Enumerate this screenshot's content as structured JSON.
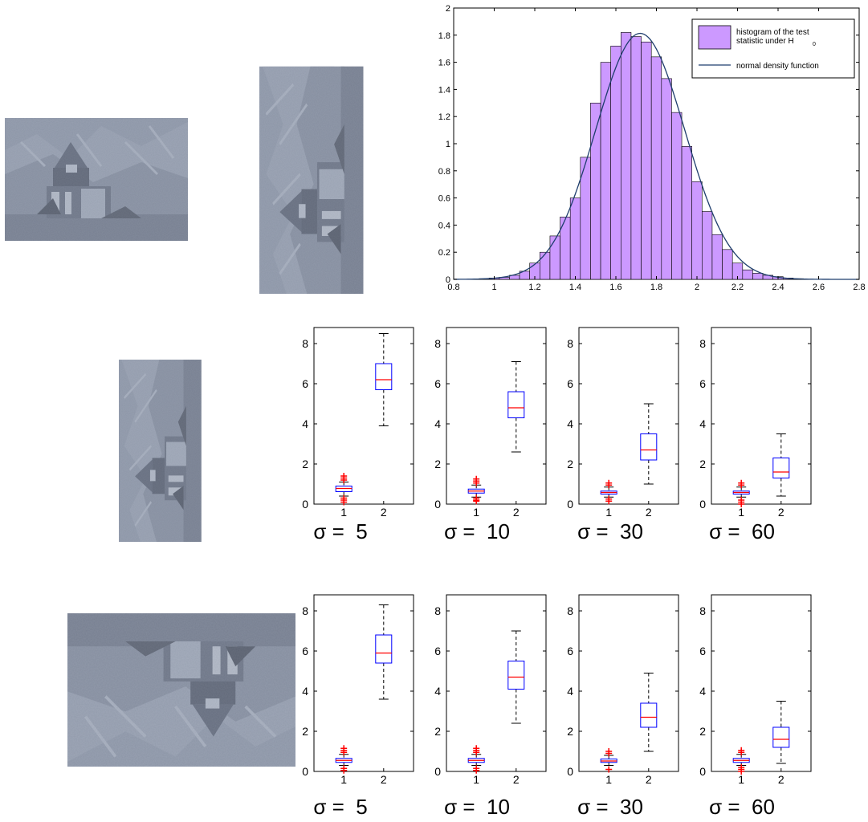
{
  "images": [
    {
      "id": "photo-original",
      "rotation": 0,
      "description": "church-on-mountainside-photo"
    },
    {
      "id": "photo-rotated-1",
      "rotation": 90
    },
    {
      "id": "photo-rotated-2",
      "rotation": 90
    },
    {
      "id": "photo-rotated-3",
      "rotation": 180
    }
  ],
  "chart_data": [
    {
      "type": "bar",
      "subtype": "histogram-with-density-line",
      "title": "",
      "xlabel": "",
      "ylabel": "",
      "xlim": [
        0.8,
        2.8
      ],
      "ylim": [
        0,
        2
      ],
      "x_ticks": [
        "0.8",
        "1",
        "1.2",
        "1.4",
        "1.6",
        "1.8",
        "2",
        "2.2",
        "2.4",
        "2.6",
        "2.8"
      ],
      "y_ticks": [
        "0",
        "0.2",
        "0.4",
        "0.6",
        "0.8",
        "1",
        "1.2",
        "1.4",
        "1.6",
        "1.8",
        "2"
      ],
      "legend": {
        "placement": "top-right",
        "entries": [
          {
            "line1": "histogram of the test",
            "line2": "statistic under H",
            "subscript": "0",
            "color": "#cc99ff"
          },
          {
            "line1": "normal density function",
            "color": "#1f3e6e"
          }
        ]
      },
      "bin_width": 0.05,
      "bins_start": 0.925,
      "values": [
        0.005,
        0.01,
        0.015,
        0.03,
        0.06,
        0.12,
        0.2,
        0.32,
        0.46,
        0.6,
        0.9,
        1.3,
        1.6,
        1.72,
        1.82,
        1.79,
        1.75,
        1.64,
        1.48,
        1.23,
        0.98,
        0.72,
        0.5,
        0.33,
        0.22,
        0.12,
        0.07,
        0.045,
        0.03,
        0.02,
        0.01,
        0.005
      ],
      "density": {
        "mean": 1.72,
        "sd": 0.22
      }
    },
    {
      "type": "box",
      "row": 1,
      "label": "σ =  5",
      "ylim": [
        0,
        8.8
      ],
      "y_ticks": [
        "0",
        "2",
        "4",
        "6",
        "8"
      ],
      "categories": [
        "1",
        "2"
      ],
      "boxes": [
        {
          "whislo": 0.4,
          "q1": 0.62,
          "med": 0.78,
          "q3": 0.9,
          "whishi": 1.1,
          "outliers": [
            0.1,
            0.2,
            0.3,
            1.2,
            1.3,
            1.4
          ]
        },
        {
          "whislo": 3.9,
          "q1": 5.7,
          "med": 6.2,
          "q3": 7.0,
          "whishi": 8.5,
          "outliers": []
        }
      ]
    },
    {
      "type": "box",
      "row": 1,
      "label": "σ =  10",
      "ylim": [
        0,
        8.8
      ],
      "y_ticks": [
        "0",
        "2",
        "4",
        "6",
        "8"
      ],
      "categories": [
        "1",
        "2"
      ],
      "boxes": [
        {
          "whislo": 0.35,
          "q1": 0.55,
          "med": 0.65,
          "q3": 0.75,
          "whishi": 0.95,
          "outliers": [
            0.15,
            0.2,
            0.3,
            1.05,
            1.15,
            1.25
          ]
        },
        {
          "whislo": 2.6,
          "q1": 4.3,
          "med": 4.8,
          "q3": 5.6,
          "whishi": 7.1,
          "outliers": []
        }
      ]
    },
    {
      "type": "box",
      "row": 1,
      "label": "σ =  30",
      "ylim": [
        0,
        8.8
      ],
      "y_ticks": [
        "0",
        "2",
        "4",
        "6",
        "8"
      ],
      "categories": [
        "1",
        "2"
      ],
      "boxes": [
        {
          "whislo": 0.35,
          "q1": 0.5,
          "med": 0.58,
          "q3": 0.65,
          "whishi": 0.85,
          "outliers": [
            0.15,
            0.25,
            0.95,
            1.05
          ]
        },
        {
          "whislo": 1.0,
          "q1": 2.2,
          "med": 2.7,
          "q3": 3.5,
          "whishi": 5.0,
          "outliers": []
        }
      ]
    },
    {
      "type": "box",
      "row": 1,
      "label": "σ =  60",
      "ylim": [
        0,
        8.8
      ],
      "y_ticks": [
        "0",
        "2",
        "4",
        "6",
        "8"
      ],
      "categories": [
        "1",
        "2"
      ],
      "boxes": [
        {
          "whislo": 0.35,
          "q1": 0.5,
          "med": 0.58,
          "q3": 0.65,
          "whishi": 0.85,
          "outliers": [
            0.0,
            0.1,
            0.2,
            0.95,
            1.05
          ]
        },
        {
          "whislo": 0.4,
          "q1": 1.3,
          "med": 1.6,
          "q3": 2.3,
          "whishi": 3.5,
          "outliers": []
        }
      ]
    },
    {
      "type": "box",
      "row": 2,
      "label": "σ =  5",
      "ylim": [
        0,
        8.8
      ],
      "y_ticks": [
        "0",
        "2",
        "4",
        "6",
        "8"
      ],
      "categories": [
        "1",
        "2"
      ],
      "boxes": [
        {
          "whislo": 0.3,
          "q1": 0.45,
          "med": 0.55,
          "q3": 0.65,
          "whishi": 0.85,
          "outliers": [
            0.05,
            0.15,
            0.95,
            1.05,
            1.15
          ]
        },
        {
          "whislo": 3.6,
          "q1": 5.4,
          "med": 5.9,
          "q3": 6.8,
          "whishi": 8.3,
          "outliers": []
        }
      ]
    },
    {
      "type": "box",
      "row": 2,
      "label": "σ =  10",
      "ylim": [
        0,
        8.8
      ],
      "y_ticks": [
        "0",
        "2",
        "4",
        "6",
        "8"
      ],
      "categories": [
        "1",
        "2"
      ],
      "boxes": [
        {
          "whislo": 0.3,
          "q1": 0.45,
          "med": 0.55,
          "q3": 0.65,
          "whishi": 0.85,
          "outliers": [
            0.05,
            0.15,
            0.95,
            1.05,
            1.15
          ]
        },
        {
          "whislo": 2.4,
          "q1": 4.1,
          "med": 4.7,
          "q3": 5.5,
          "whishi": 7.0,
          "outliers": []
        }
      ]
    },
    {
      "type": "box",
      "row": 2,
      "label": "σ =  30",
      "ylim": [
        0,
        8.8
      ],
      "y_ticks": [
        "0",
        "2",
        "4",
        "6",
        "8"
      ],
      "categories": [
        "1",
        "2"
      ],
      "boxes": [
        {
          "whislo": 0.3,
          "q1": 0.45,
          "med": 0.52,
          "q3": 0.62,
          "whishi": 0.8,
          "outliers": [
            0.1,
            0.9,
            1.0
          ]
        },
        {
          "whislo": 1.0,
          "q1": 2.2,
          "med": 2.7,
          "q3": 3.4,
          "whishi": 4.9,
          "outliers": []
        }
      ]
    },
    {
      "type": "box",
      "row": 2,
      "label": "σ =  60",
      "ylim": [
        0,
        8.8
      ],
      "y_ticks": [
        "0",
        "2",
        "4",
        "6",
        "8"
      ],
      "categories": [
        "1",
        "2"
      ],
      "boxes": [
        {
          "whislo": 0.3,
          "q1": 0.45,
          "med": 0.55,
          "q3": 0.65,
          "whishi": 0.85,
          "outliers": [
            0.0,
            0.1,
            0.2,
            0.95,
            1.05
          ]
        },
        {
          "whislo": 0.4,
          "q1": 1.2,
          "med": 1.6,
          "q3": 2.2,
          "whishi": 3.5,
          "outliers": []
        }
      ]
    }
  ]
}
